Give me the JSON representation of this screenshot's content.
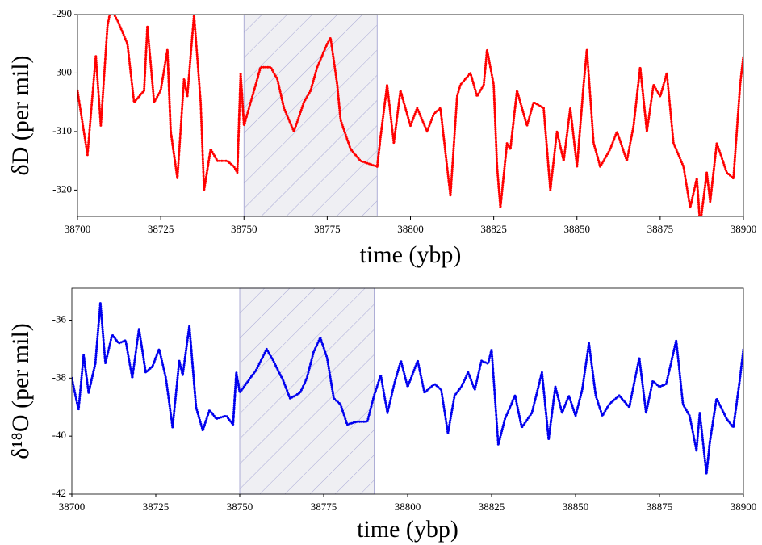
{
  "chart_data": [
    {
      "type": "line",
      "xlabel": "time (ybp)",
      "ylabel": "δD (per mil)",
      "xlim": [
        38700,
        38900
      ],
      "xticks": [
        38700,
        38725,
        38750,
        38775,
        38800,
        38825,
        38850,
        38875,
        38900
      ],
      "ylim": [
        -324.5,
        -290
      ],
      "yticks": [
        -320,
        -310,
        -300,
        -290
      ],
      "shaded_span": [
        38750,
        38790
      ],
      "series": [
        {
          "color": "#ff0000",
          "x": [
            38700,
            38703,
            38705.5,
            38707,
            38709,
            38710,
            38712,
            38715,
            38717,
            38720,
            38721,
            38723,
            38725,
            38727,
            38728,
            38730,
            38732,
            38733,
            38735,
            38737,
            38738,
            38740,
            38742,
            38745,
            38747,
            38748,
            38749,
            38750,
            38755,
            38758,
            38760,
            38762,
            38765,
            38768,
            38770,
            38772,
            38775,
            38776,
            38778,
            38779,
            38782,
            38785,
            38790,
            38791,
            38793,
            38795,
            38797,
            38800,
            38802,
            38805,
            38807,
            38809,
            38812,
            38814,
            38815,
            38818,
            38820,
            38822,
            38823,
            38825,
            38826,
            38827,
            38829,
            38830,
            38832,
            38835,
            38837,
            38840,
            38842,
            38844,
            38846,
            38848,
            38850,
            38852,
            38853,
            38855,
            38857,
            38860,
            38862,
            38865,
            38867,
            38869,
            38871,
            38873,
            38875,
            38877,
            38879,
            38882,
            38884,
            38886,
            38887,
            38889,
            38890,
            38892,
            38895,
            38897,
            38899,
            38900
          ],
          "values": [
            -303,
            -314,
            -297,
            -309,
            -292,
            -289,
            -291,
            -295,
            -305,
            -303,
            -292,
            -305,
            -303,
            -296,
            -310,
            -318,
            -301,
            -304,
            -290,
            -305,
            -320,
            -313,
            -315,
            -315,
            -316,
            -317,
            -300,
            -309,
            -299,
            -299,
            -301,
            -306,
            -310,
            -305,
            -303,
            -299,
            -295,
            -294,
            -302,
            -308,
            -313,
            -315,
            -316,
            -311,
            -302,
            -312,
            -303,
            -309,
            -306,
            -310,
            -307,
            -306,
            -321,
            -304,
            -302,
            -300,
            -304,
            -302,
            -296,
            -302,
            -316,
            -323,
            -312,
            -313,
            -303,
            -309,
            -305,
            -306,
            -320,
            -310,
            -315,
            -306,
            -316,
            -302,
            -296,
            -312,
            -316,
            -313,
            -310,
            -315,
            -309,
            -299,
            -310,
            -302,
            -304,
            -300,
            -312,
            -316,
            -323,
            -318,
            -326,
            -317,
            -322,
            -312,
            -317,
            -318,
            -302,
            -297
          ]
        }
      ]
    },
    {
      "type": "line",
      "xlabel": "time (ybp)",
      "ylabel": "δ¹⁸O (per mil)",
      "xlim": [
        38700,
        38900
      ],
      "xticks": [
        38700,
        38725,
        38750,
        38775,
        38800,
        38825,
        38850,
        38875,
        38900
      ],
      "ylim": [
        -42,
        -34.9
      ],
      "yticks": [
        -42,
        -40,
        -38,
        -36
      ],
      "shaded_span": [
        38750,
        38790
      ],
      "series": [
        {
          "color": "#0000ee",
          "x": [
            38700,
            38702,
            38703.5,
            38705,
            38707,
            38708.5,
            38710,
            38712,
            38714,
            38716,
            38718,
            38720,
            38722,
            38724,
            38726,
            38728,
            38730,
            38732,
            38733,
            38735,
            38737,
            38739,
            38741,
            38743,
            38746,
            38748,
            38749,
            38750,
            38755,
            38758,
            38760,
            38763,
            38765,
            38768,
            38770,
            38772,
            38774,
            38776,
            38778,
            38780,
            38782,
            38785,
            38788,
            38790,
            38792,
            38794,
            38796,
            38798,
            38800,
            38803,
            38805,
            38808,
            38810,
            38812,
            38814,
            38816,
            38818,
            38820,
            38822,
            38824,
            38825,
            38827,
            38829,
            38832,
            38834,
            38837,
            38840,
            38842,
            38844,
            38846,
            38848,
            38850,
            38852,
            38854,
            38856,
            38858,
            38860,
            38863,
            38866,
            38869,
            38871,
            38873,
            38875,
            38877,
            38880,
            38882,
            38884,
            38886,
            38887,
            38889,
            38890,
            38892,
            38895,
            38897,
            38899,
            38900
          ],
          "values": [
            -38,
            -39.1,
            -37.2,
            -38.5,
            -37.5,
            -35.4,
            -37.5,
            -36.5,
            -36.8,
            -36.7,
            -38,
            -36.3,
            -37.8,
            -37.6,
            -37,
            -38,
            -39.7,
            -37.4,
            -37.9,
            -36.2,
            -39,
            -39.8,
            -39.1,
            -39.4,
            -39.3,
            -39.6,
            -37.8,
            -38.5,
            -37.7,
            -37,
            -37.4,
            -38.1,
            -38.7,
            -38.5,
            -38,
            -37.1,
            -36.6,
            -37.3,
            -38.7,
            -38.9,
            -39.6,
            -39.5,
            -39.5,
            -38.6,
            -37.9,
            -39.2,
            -38.2,
            -37.4,
            -38.3,
            -37.4,
            -38.5,
            -38.2,
            -38.4,
            -39.9,
            -38.6,
            -38.3,
            -37.8,
            -38.4,
            -37.4,
            -37.5,
            -37,
            -40.3,
            -39.4,
            -38.6,
            -39.7,
            -39.2,
            -37.8,
            -40.1,
            -38.3,
            -39.2,
            -38.6,
            -39.3,
            -38.4,
            -36.8,
            -38.6,
            -39.3,
            -38.9,
            -38.6,
            -39,
            -37.3,
            -39.2,
            -38.1,
            -38.3,
            -38.2,
            -36.7,
            -38.9,
            -39.3,
            -40.5,
            -39.2,
            -41.3,
            -40.2,
            -38.7,
            -39.4,
            -39.7,
            -38,
            -37
          ]
        }
      ]
    }
  ]
}
